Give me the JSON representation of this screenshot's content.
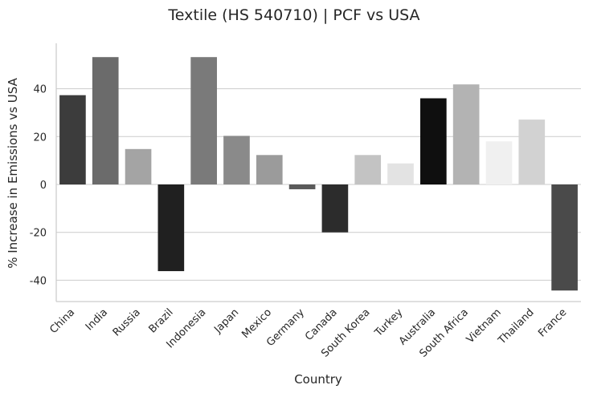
{
  "chart_data": {
    "type": "bar",
    "title": "Textile (HS 540710) | PCF vs USA",
    "xlabel": "Country",
    "ylabel": "% Increase in Emissions vs USA",
    "categories": [
      "China",
      "India",
      "Russia",
      "Brazil",
      "Indonesia",
      "Japan",
      "Mexico",
      "Germany",
      "Canada",
      "South Korea",
      "Turkey",
      "Australia",
      "South Africa",
      "Vietnam",
      "Thailand",
      "France"
    ],
    "values": [
      37.3,
      53.2,
      14.8,
      -36.2,
      53.2,
      20.3,
      12.3,
      -2.0,
      -20.0,
      12.3,
      8.8,
      36.0,
      41.8,
      18.0,
      27.1,
      -44.3
    ],
    "colors": [
      "#3c3c3c",
      "#6b6b6b",
      "#a4a4a4",
      "#202020",
      "#7a7a7a",
      "#8a8a8a",
      "#9b9b9b",
      "#5a5a5a",
      "#2c2c2c",
      "#c3c3c3",
      "#e3e3e3",
      "#0f0f0f",
      "#b3b3b3",
      "#f0f0f0",
      "#d2d2d2",
      "#4a4a4a"
    ],
    "yticks": [
      -40,
      -20,
      0,
      20,
      40
    ],
    "ylim": [
      -49,
      59
    ],
    "grid": "horizontal",
    "legend": "none"
  }
}
